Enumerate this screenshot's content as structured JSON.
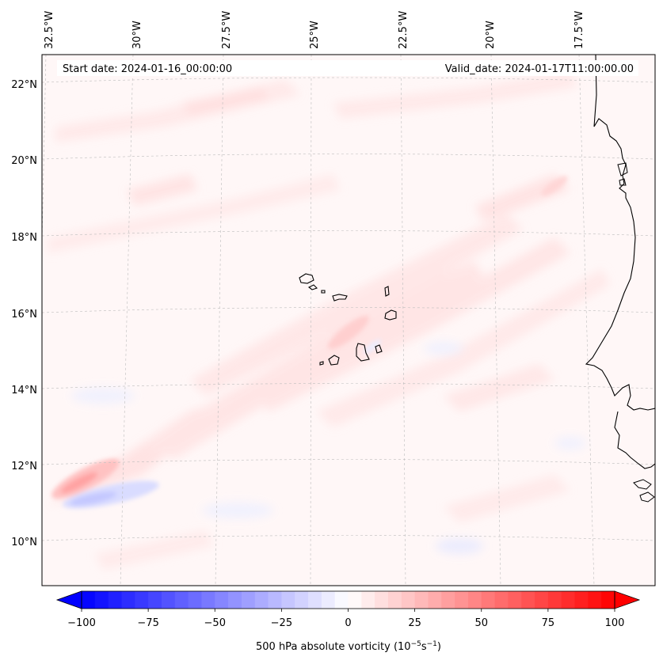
{
  "header": {
    "start_date": "Start date: 2024-01-16_00:00:00",
    "valid_date": "Valid_date: 2024-01-17T11:00:00.00"
  },
  "map": {
    "lon_labels": [
      "32.5°W",
      "30°W",
      "27.5°W",
      "25°W",
      "22.5°W",
      "20°W",
      "17.5°W"
    ],
    "lat_labels": [
      "22°N",
      "20°N",
      "18°N",
      "16°N",
      "14°N",
      "12°N",
      "10°N"
    ]
  },
  "colorbar": {
    "tick_labels": [
      "−100",
      "−75",
      "−50",
      "−25",
      "0",
      "25",
      "50",
      "75",
      "100"
    ],
    "vmin": -100,
    "vmax": 100,
    "label_prefix": "500 hPa absolute vorticity (10",
    "label_exp1": "−5",
    "label_mid": "s",
    "label_exp2": "−1",
    "label_suffix": ")",
    "colors": {
      "negative": "#0000ff",
      "neutral": "#ffffff",
      "positive": "#ff0000"
    }
  }
}
